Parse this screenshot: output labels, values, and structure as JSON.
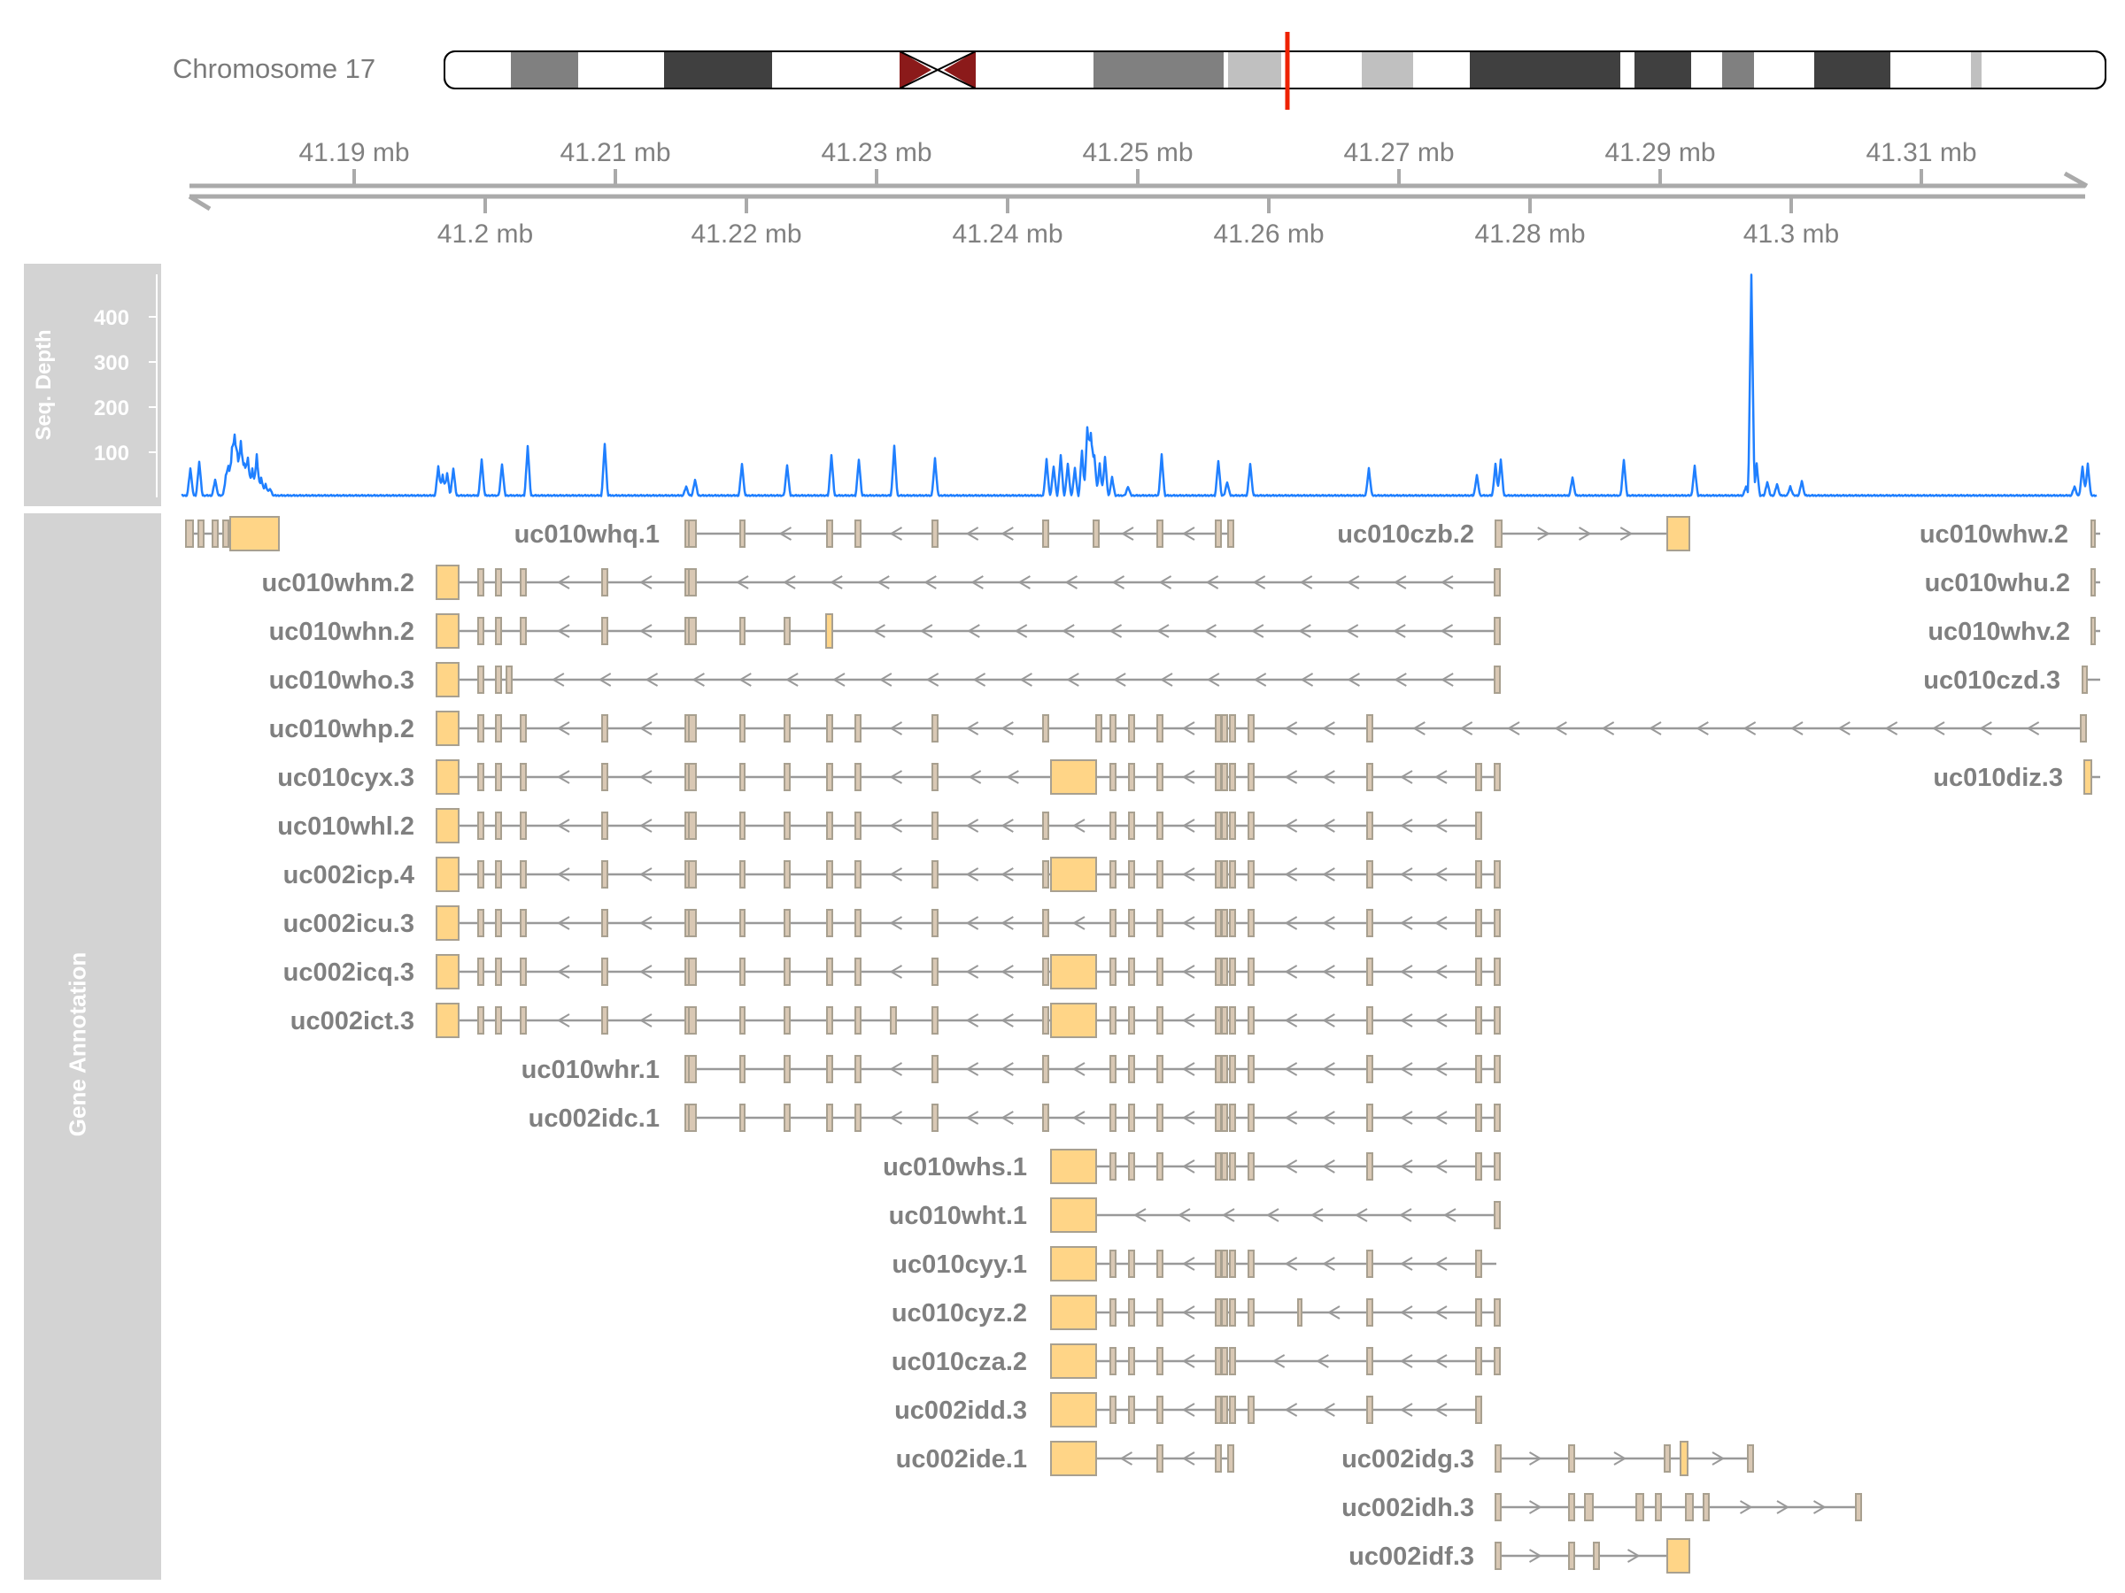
{
  "ideogram": {
    "chromosome_label": "Chromosome 17"
  },
  "genome_axis": {
    "unit": "mb",
    "upper_ticks": [
      "41.19 mb",
      "41.21 mb",
      "41.23 mb",
      "41.25 mb",
      "41.27 mb",
      "41.29 mb",
      "41.31 mb"
    ],
    "lower_ticks": [
      "41.2 mb",
      "41.22 mb",
      "41.24 mb",
      "41.26 mb",
      "41.28 mb",
      "41.3 mb"
    ]
  },
  "coverage_track": {
    "title": "Seq. Depth",
    "y_ticks": [
      "100",
      "200",
      "300",
      "400"
    ],
    "line_color": "#1f7fff"
  },
  "annotation_track": {
    "title": "Gene Annotation",
    "exon_color": "#d9c8b4",
    "utr_color": "#ffd587",
    "intron_color": "#999999",
    "transcript_labels": [
      "uc010whq.1",
      "uc010czb.2",
      "uc010whw.2",
      "uc010whm.2",
      "uc010whu.2",
      "uc010whn.2",
      "uc010whv.2",
      "uc010who.3",
      "uc010czd.3",
      "uc010whp.2",
      "uc010cyx.3",
      "uc010diz.3",
      "uc010whl.2",
      "uc002icp.4",
      "uc002icu.3",
      "uc002icq.3",
      "uc002ict.3",
      "uc010whr.1",
      "uc002idc.1",
      "uc010whs.1",
      "uc010wht.1",
      "uc010cyy.1",
      "uc010cyz.2",
      "uc010cza.2",
      "uc002idd.3",
      "uc002ide.1",
      "uc002idg.3",
      "uc002idh.3",
      "uc002idf.3"
    ]
  },
  "colors": {
    "panel_background": "#d3d3d3",
    "axis_gray": "#aaaaaa",
    "label_gray": "#808080",
    "centromere": "#8b1a1a",
    "highlight_marker": "#ee2200"
  }
}
